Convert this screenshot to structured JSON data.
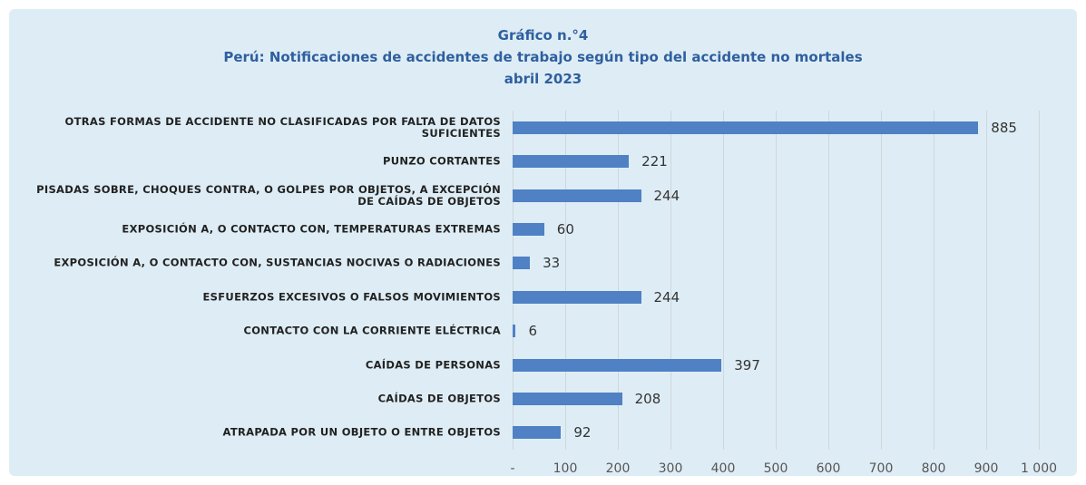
{
  "chart_data": {
    "type": "bar",
    "orientation": "horizontal",
    "title": "Gráfico n.°4",
    "subtitle": "Perú: Notificaciones de accidentes de trabajo  según tipo del accidente no mortales",
    "period": "abril 2023",
    "categories": [
      "OTRAS FORMAS DE ACCIDENTE NO CLASIFICADAS POR FALTA DE DATOS SUFICIENTES",
      "PUNZO CORTANTES",
      "PISADAS SOBRE, CHOQUES CONTRA, O GOLPES POR OBJETOS, A EXCEPCIÓN DE CAÍDAS DE OBJETOS",
      "EXPOSICIÓN A, O CONTACTO CON, TEMPERATURAS EXTREMAS",
      "EXPOSICIÓN A, O CONTACTO CON, SUSTANCIAS NOCIVAS O RADIACIONES",
      "ESFUERZOS EXCESIVOS O FALSOS MOVIMIENTOS",
      "CONTACTO CON LA CORRIENTE ELÉCTRICA",
      "CAÍDAS DE PERSONAS",
      "CAÍDAS DE OBJETOS",
      "ATRAPADA POR UN OBJETO O ENTRE OBJETOS"
    ],
    "values": [
      885,
      221,
      244,
      60,
      33,
      244,
      6,
      397,
      208,
      92
    ],
    "color": "#4f81c4",
    "xlim": [
      0,
      1000
    ],
    "xticks": [
      {
        "value": 0,
        "label": "-"
      },
      100,
      200,
      300,
      400,
      500,
      600,
      700,
      800,
      900,
      {
        "value": 1000,
        "label": "1 000"
      }
    ],
    "grid": true
  }
}
